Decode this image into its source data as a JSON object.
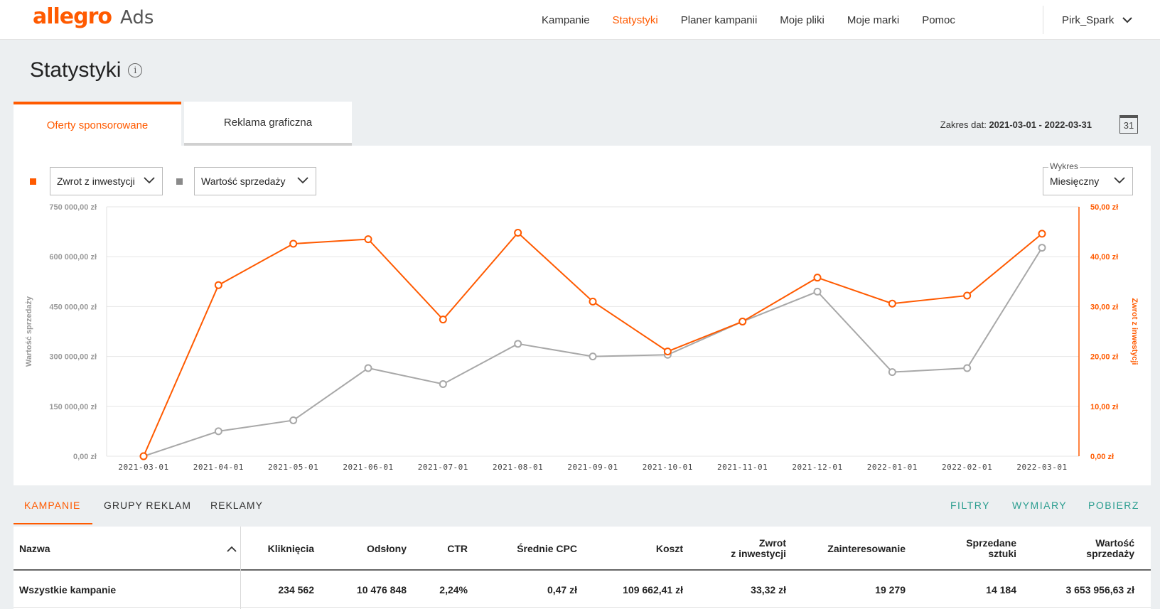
{
  "header": {
    "logo_brand": "allegro",
    "logo_product": "Ads",
    "nav": [
      "Kampanie",
      "Statystyki",
      "Planer kampanii",
      "Moje pliki",
      "Moje marki",
      "Pomoc"
    ],
    "active_nav": "Statystyki",
    "user": "Pirk_Spark"
  },
  "page": {
    "title": "Statystyki"
  },
  "tabs": {
    "active": "Oferty sponsorowane",
    "inactive": "Reklama graficzna"
  },
  "date_range": {
    "label": "Zakres dat:",
    "value": "2021-03-01 - 2022-03-31",
    "calendar_day": "31"
  },
  "controls": {
    "metric1": "Zwrot z inwestycji",
    "metric2": "Wartość sprzedaży",
    "chart_label": "Wykres",
    "chart_value": "Miesięczny"
  },
  "colors": {
    "accent": "#ff5a00",
    "secondary_series": "#a8a8a8",
    "action": "#2a9d8f"
  },
  "chart_data": {
    "type": "line",
    "x": [
      "2021-03-01",
      "2021-04-01",
      "2021-05-01",
      "2021-06-01",
      "2021-07-01",
      "2021-08-01",
      "2021-09-01",
      "2021-10-01",
      "2021-11-01",
      "2021-12-01",
      "2022-01-01",
      "2022-02-01",
      "2022-03-01"
    ],
    "series": [
      {
        "name": "Wartość sprzedaży",
        "axis": "left",
        "color": "#a8a8a8",
        "values": [
          0,
          75000,
          108000,
          265000,
          217000,
          338000,
          300000,
          305000,
          405000,
          495000,
          253000,
          265000,
          627000
        ]
      },
      {
        "name": "Zwrot z inwestycji",
        "axis": "right",
        "color": "#ff5a00",
        "values": [
          0,
          34.3,
          42.6,
          43.5,
          27.4,
          44.8,
          31.0,
          21.0,
          27.0,
          35.8,
          30.6,
          32.2,
          44.6
        ]
      }
    ],
    "y_left": {
      "label": "Wartość sprzedaży",
      "range": [
        0,
        750000
      ],
      "ticks": [
        "0,00 zł",
        "150 000,00 zł",
        "300 000,00 zł",
        "450 000,00 zł",
        "600 000,00 zł",
        "750 000,00 zł"
      ]
    },
    "y_right": {
      "label": "Zwrot z inwestycji",
      "range": [
        0,
        50
      ],
      "ticks": [
        "0,00 zł",
        "10,00 zł",
        "20,00 zł",
        "30,00 zł",
        "40,00 zł",
        "50,00 zł"
      ]
    },
    "grid": true
  },
  "bottom_tabs": [
    "KAMPANIE",
    "GRUPY REKLAM",
    "REKLAMY"
  ],
  "actions": [
    "FILTRY",
    "WYMIARY",
    "POBIERZ"
  ],
  "table": {
    "columns": {
      "name": "Nazwa",
      "clicks": "Kliknięcia",
      "views": "Odsłony",
      "ctr": "CTR",
      "cpc": "Średnie CPC",
      "cost": "Koszt",
      "roi1": "Zwrot",
      "roi2": "z inwestycji",
      "interest": "Zainteresowanie",
      "sold1": "Sprzedane",
      "sold2": "sztuki",
      "value1": "Wartość",
      "value2": "sprzedaży"
    },
    "row": {
      "name": "Wszystkie kampanie",
      "clicks": "234 562",
      "views": "10 476 848",
      "ctr": "2,24%",
      "cpc": "0,47 zł",
      "cost": "109 662,41 zł",
      "roi": "33,32 zł",
      "interest": "19 279",
      "sold": "14 184",
      "value": "3 653 956,63 zł"
    }
  }
}
